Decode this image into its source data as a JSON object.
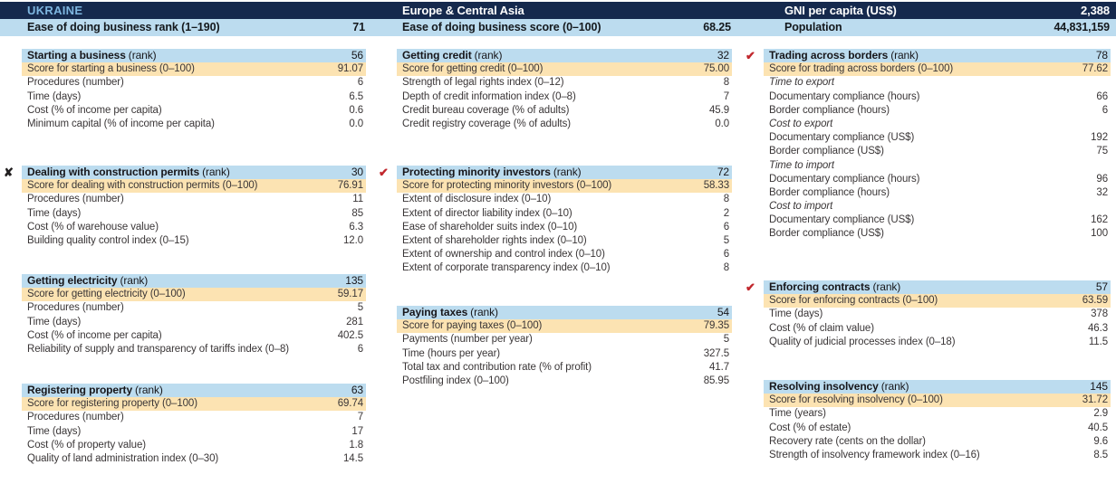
{
  "header": {
    "country": "UKRAINE",
    "region": "Europe & Central Asia",
    "gni_label": "GNI per capita (US$)",
    "gni_value": "2,388",
    "rank_label": "Ease of doing business rank (1–190)",
    "rank_value": "71",
    "score_label": "Ease of doing business score (0–100)",
    "score_value": "68.25",
    "population_label": "Population",
    "population_value": "44,831,159"
  },
  "colors": {
    "navy": "#15294d",
    "lightblue": "#bcdcef",
    "orange": "#fce3b2",
    "countryblue": "#7eb6e0",
    "red": "#c1272d"
  },
  "icons": {
    "check": "✔",
    "x": "✘"
  },
  "columns": [
    {
      "sections": [
        {
          "marker": "",
          "title": "Starting a business",
          "title_suffix": "(rank)",
          "rank": "56",
          "score_label": "Score for starting a business (0–100)",
          "score_value": "91.07",
          "rows": [
            {
              "label": "Procedures (number)",
              "value": "6"
            },
            {
              "label": "Time (days)",
              "value": "6.5"
            },
            {
              "label": "Cost (% of income per capita)",
              "value": "0.6"
            },
            {
              "label": "Minimum capital (% of income per capita)",
              "value": "0.0"
            }
          ]
        },
        {
          "marker": "x",
          "title": "Dealing with construction permits",
          "title_suffix": "(rank)",
          "rank": "30",
          "score_label": "Score for dealing with construction permits (0–100)",
          "score_value": "76.91",
          "rows": [
            {
              "label": "Procedures (number)",
              "value": "11"
            },
            {
              "label": "Time (days)",
              "value": "85"
            },
            {
              "label": "Cost (% of warehouse value)",
              "value": "6.3"
            },
            {
              "label": "Building quality control index (0–15)",
              "value": "12.0"
            }
          ]
        },
        {
          "marker": "",
          "title": "Getting electricity",
          "title_suffix": "(rank)",
          "rank": "135",
          "score_label": "Score for getting electricity (0–100)",
          "score_value": "59.17",
          "rows": [
            {
              "label": "Procedures (number)",
              "value": "5"
            },
            {
              "label": "Time (days)",
              "value": "281"
            },
            {
              "label": "Cost (% of income per capita)",
              "value": "402.5"
            },
            {
              "label": "Reliability of supply and transparency of tariffs index (0–8)",
              "value": "6"
            }
          ]
        },
        {
          "marker": "",
          "title": "Registering property",
          "title_suffix": "(rank)",
          "rank": "63",
          "score_label": "Score for registering property (0–100)",
          "score_value": "69.74",
          "rows": [
            {
              "label": "Procedures (number)",
              "value": "7"
            },
            {
              "label": "Time (days)",
              "value": "17"
            },
            {
              "label": "Cost (% of property value)",
              "value": "1.8"
            },
            {
              "label": "Quality of land administration index (0–30)",
              "value": "14.5"
            }
          ]
        }
      ]
    },
    {
      "sections": [
        {
          "marker": "",
          "title": "Getting credit",
          "title_suffix": "(rank)",
          "rank": "32",
          "score_label": "Score for getting credit (0–100)",
          "score_value": "75.00",
          "rows": [
            {
              "label": "Strength of legal rights index (0–12)",
              "value": "8"
            },
            {
              "label": "Depth of credit information index (0–8)",
              "value": "7"
            },
            {
              "label": "Credit bureau coverage (% of adults)",
              "value": "45.9"
            },
            {
              "label": "Credit registry coverage (% of adults)",
              "value": "0.0"
            }
          ]
        },
        {
          "marker": "check",
          "title": "Protecting minority investors",
          "title_suffix": "(rank)",
          "rank": "72",
          "score_label": "Score for protecting minority investors (0–100)",
          "score_value": "58.33",
          "rows": [
            {
              "label": "Extent of disclosure index (0–10)",
              "value": "8"
            },
            {
              "label": "Extent of director liability index (0–10)",
              "value": "2"
            },
            {
              "label": "Ease of shareholder suits index (0–10)",
              "value": "6"
            },
            {
              "label": "Extent of shareholder rights index (0–10)",
              "value": "5"
            },
            {
              "label": "Extent of ownership and control index (0–10)",
              "value": "6"
            },
            {
              "label": "Extent of corporate transparency index (0–10)",
              "value": "8"
            }
          ]
        },
        {
          "marker": "",
          "title": "Paying taxes",
          "title_suffix": "(rank)",
          "rank": "54",
          "score_label": "Score for paying taxes (0–100)",
          "score_value": "79.35",
          "rows": [
            {
              "label": "Payments (number per year)",
              "value": "5"
            },
            {
              "label": "Time (hours per year)",
              "value": "327.5"
            },
            {
              "label": "Total tax and contribution rate (% of profit)",
              "value": "41.7"
            },
            {
              "label": "Postfiling index (0–100)",
              "value": "85.95"
            }
          ]
        }
      ]
    },
    {
      "sections": [
        {
          "marker": "check",
          "title": "Trading across borders",
          "title_suffix": "(rank)",
          "rank": "78",
          "score_label": "Score for trading across borders (0–100)",
          "score_value": "77.62",
          "rows": [
            {
              "label": "Time to export",
              "value": "",
              "italic": true
            },
            {
              "label": "Documentary compliance (hours)",
              "value": "66"
            },
            {
              "label": "Border compliance (hours)",
              "value": "6"
            },
            {
              "label": "Cost to export",
              "value": "",
              "italic": true
            },
            {
              "label": "Documentary compliance (US$)",
              "value": "192"
            },
            {
              "label": "Border compliance (US$)",
              "value": "75"
            },
            {
              "label": "Time to import",
              "value": "",
              "italic": true
            },
            {
              "label": "Documentary compliance (hours)",
              "value": "96"
            },
            {
              "label": "Border compliance (hours)",
              "value": "32"
            },
            {
              "label": "Cost to import",
              "value": "",
              "italic": true
            },
            {
              "label": "Documentary compliance (US$)",
              "value": "162"
            },
            {
              "label": "Border compliance (US$)",
              "value": "100"
            }
          ]
        },
        {
          "marker": "check",
          "title": "Enforcing contracts",
          "title_suffix": "(rank)",
          "rank": "57",
          "score_label": "Score for enforcing contracts (0–100)",
          "score_value": "63.59",
          "rows": [
            {
              "label": "Time (days)",
              "value": "378"
            },
            {
              "label": "Cost (% of claim value)",
              "value": "46.3"
            },
            {
              "label": "Quality of judicial processes index (0–18)",
              "value": "11.5"
            }
          ]
        },
        {
          "marker": "",
          "title": "Resolving insolvency",
          "title_suffix": "(rank)",
          "rank": "145",
          "score_label": "Score for resolving insolvency (0–100)",
          "score_value": "31.72",
          "rows": [
            {
              "label": "Time (years)",
              "value": "2.9"
            },
            {
              "label": "Cost (% of estate)",
              "value": "40.5"
            },
            {
              "label": "Recovery rate (cents on the dollar)",
              "value": "9.6"
            },
            {
              "label": "Strength of insolvency framework index (0–16)",
              "value": "8.5"
            }
          ]
        }
      ]
    }
  ]
}
